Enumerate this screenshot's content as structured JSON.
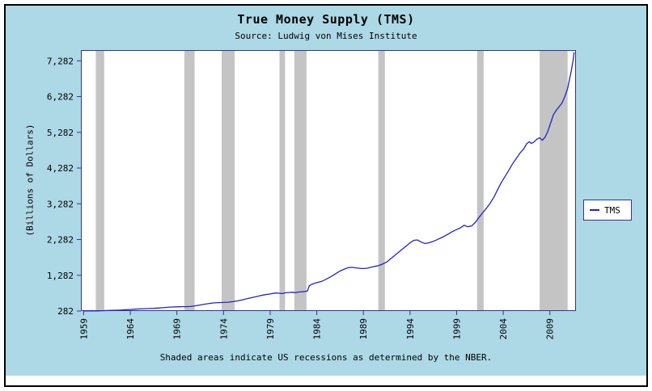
{
  "chart_data": {
    "type": "line",
    "title": "True Money Supply (TMS)",
    "subtitle": "Source: Ludwig von Mises Institute",
    "ylabel": "(Billions of Dollars)",
    "caption": "Shaded areas indicate US recessions as determined by the NBER.",
    "legend_position": "right",
    "grid": false,
    "xlim": [
      1958.7,
      2011.8
    ],
    "ylim": [
      282,
      7582
    ],
    "x_ticks": [
      1959,
      1964,
      1969,
      1974,
      1979,
      1984,
      1989,
      1994,
      1999,
      2004,
      2009
    ],
    "y_ticks": [
      282,
      1282,
      2282,
      3282,
      4282,
      5282,
      6282,
      7282
    ],
    "colors": {
      "panel_background": "#ADD8E6",
      "plot_background": "#ffffff",
      "recession_band": "#c4c4c4",
      "axis": "#333399",
      "line": "#2222cc",
      "frame_border": "#000000"
    },
    "recessions": [
      [
        1960.3,
        1961.2
      ],
      [
        1969.8,
        1970.9
      ],
      [
        1973.8,
        1975.2
      ],
      [
        1980.0,
        1980.6
      ],
      [
        1981.6,
        1982.9
      ],
      [
        1990.6,
        1991.3
      ],
      [
        2001.2,
        2001.9
      ],
      [
        2007.9,
        2010.9
      ]
    ],
    "series": [
      {
        "name": "TMS",
        "color": "#2222cc",
        "units": "billions of dollars",
        "points": [
          [
            1959.0,
            287
          ],
          [
            1959.5,
            285
          ],
          [
            1960.0,
            289
          ],
          [
            1960.5,
            287
          ],
          [
            1961.0,
            291
          ],
          [
            1961.5,
            296
          ],
          [
            1962.0,
            300
          ],
          [
            1962.5,
            304
          ],
          [
            1963.0,
            310
          ],
          [
            1963.5,
            318
          ],
          [
            1964.0,
            326
          ],
          [
            1964.5,
            333
          ],
          [
            1965.0,
            340
          ],
          [
            1965.5,
            347
          ],
          [
            1966.0,
            353
          ],
          [
            1966.5,
            356
          ],
          [
            1967.0,
            365
          ],
          [
            1967.5,
            375
          ],
          [
            1968.0,
            386
          ],
          [
            1968.5,
            394
          ],
          [
            1969.0,
            400
          ],
          [
            1969.5,
            403
          ],
          [
            1970.0,
            404
          ],
          [
            1970.5,
            408
          ],
          [
            1971.0,
            430
          ],
          [
            1971.5,
            452
          ],
          [
            1972.0,
            475
          ],
          [
            1972.5,
            495
          ],
          [
            1973.0,
            510
          ],
          [
            1973.5,
            517
          ],
          [
            1974.0,
            522
          ],
          [
            1974.5,
            528
          ],
          [
            1975.0,
            545
          ],
          [
            1975.5,
            565
          ],
          [
            1976.0,
            595
          ],
          [
            1976.5,
            625
          ],
          [
            1977.0,
            655
          ],
          [
            1977.5,
            685
          ],
          [
            1978.0,
            715
          ],
          [
            1978.5,
            740
          ],
          [
            1979.0,
            760
          ],
          [
            1979.3,
            775
          ],
          [
            1979.6,
            785
          ],
          [
            1980.0,
            780
          ],
          [
            1980.3,
            770
          ],
          [
            1980.6,
            790
          ],
          [
            1981.0,
            800
          ],
          [
            1981.3,
            808
          ],
          [
            1981.6,
            795
          ],
          [
            1982.0,
            810
          ],
          [
            1982.4,
            822
          ],
          [
            1982.8,
            832
          ],
          [
            1983.0,
            845
          ],
          [
            1983.2,
            990
          ],
          [
            1983.5,
            1035
          ],
          [
            1984.0,
            1075
          ],
          [
            1984.5,
            1110
          ],
          [
            1985.0,
            1170
          ],
          [
            1985.5,
            1240
          ],
          [
            1986.0,
            1320
          ],
          [
            1986.5,
            1400
          ],
          [
            1987.0,
            1460
          ],
          [
            1987.4,
            1495
          ],
          [
            1987.8,
            1505
          ],
          [
            1988.2,
            1490
          ],
          [
            1988.6,
            1478
          ],
          [
            1989.0,
            1468
          ],
          [
            1989.4,
            1480
          ],
          [
            1989.8,
            1505
          ],
          [
            1990.2,
            1530
          ],
          [
            1990.6,
            1550
          ],
          [
            1991.0,
            1590
          ],
          [
            1991.5,
            1650
          ],
          [
            1992.0,
            1760
          ],
          [
            1992.5,
            1870
          ],
          [
            1993.0,
            1975
          ],
          [
            1993.5,
            2080
          ],
          [
            1994.0,
            2190
          ],
          [
            1994.4,
            2260
          ],
          [
            1994.8,
            2270
          ],
          [
            1995.2,
            2210
          ],
          [
            1995.6,
            2170
          ],
          [
            1996.0,
            2190
          ],
          [
            1996.5,
            2230
          ],
          [
            1997.0,
            2290
          ],
          [
            1997.5,
            2350
          ],
          [
            1998.0,
            2420
          ],
          [
            1998.5,
            2500
          ],
          [
            1999.0,
            2560
          ],
          [
            1999.4,
            2610
          ],
          [
            1999.8,
            2680
          ],
          [
            2000.2,
            2640
          ],
          [
            2000.6,
            2660
          ],
          [
            2001.0,
            2760
          ],
          [
            2001.4,
            2900
          ],
          [
            2001.8,
            3030
          ],
          [
            2002.2,
            3160
          ],
          [
            2002.6,
            3300
          ],
          [
            2003.0,
            3470
          ],
          [
            2003.4,
            3680
          ],
          [
            2003.8,
            3880
          ],
          [
            2004.2,
            4050
          ],
          [
            2004.6,
            4220
          ],
          [
            2005.0,
            4400
          ],
          [
            2005.4,
            4550
          ],
          [
            2005.8,
            4700
          ],
          [
            2006.2,
            4820
          ],
          [
            2006.5,
            4960
          ],
          [
            2006.8,
            5020
          ],
          [
            2007.0,
            4970
          ],
          [
            2007.3,
            5010
          ],
          [
            2007.6,
            5090
          ],
          [
            2007.9,
            5130
          ],
          [
            2008.2,
            5060
          ],
          [
            2008.5,
            5150
          ],
          [
            2008.8,
            5320
          ],
          [
            2009.1,
            5560
          ],
          [
            2009.4,
            5780
          ],
          [
            2009.7,
            5900
          ],
          [
            2010.0,
            6000
          ],
          [
            2010.3,
            6100
          ],
          [
            2010.6,
            6280
          ],
          [
            2010.9,
            6500
          ],
          [
            2011.1,
            6750
          ],
          [
            2011.3,
            7000
          ],
          [
            2011.5,
            7300
          ],
          [
            2011.6,
            7520
          ]
        ]
      }
    ]
  }
}
